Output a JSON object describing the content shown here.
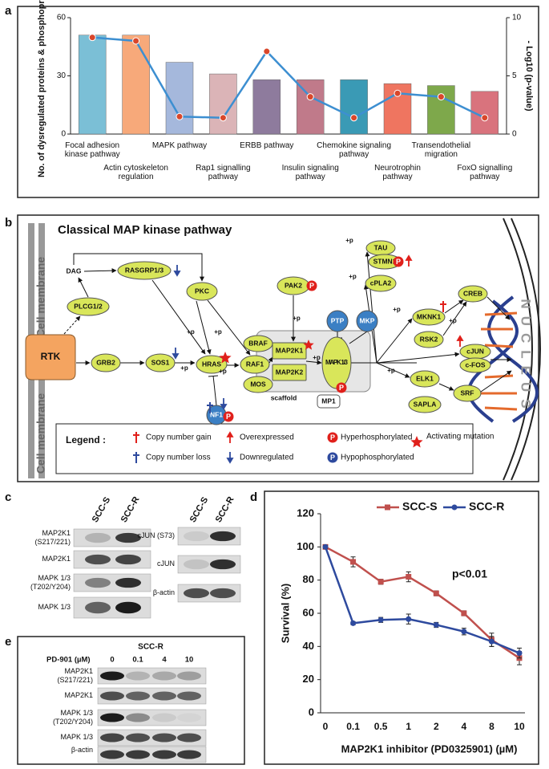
{
  "panel_labels": [
    "a",
    "b",
    "c",
    "d",
    "e"
  ],
  "chart_data": [
    {
      "type": "bar",
      "categories": [
        "Focal adhesion kinase pathway",
        "Actin cytoskeleton regulation",
        "MAPK pathway",
        "Rap1 signalling pathway",
        "ERBB pathway",
        "Insulin signaling pathway",
        "Chemokine signaling pathway",
        "Neurotrophin pathway",
        "Transendothelial migration",
        "FoxO signalling pathway"
      ],
      "values": [
        51,
        51,
        37,
        31,
        28,
        28,
        28,
        26,
        25,
        22
      ],
      "colors": [
        "#7bbfd6",
        "#f7a97a",
        "#a5b8dc",
        "#dbb4b7",
        "#8e7b9d",
        "#c07a8a",
        "#3a9ab5",
        "#ef7560",
        "#7ea84b",
        "#d9737d"
      ],
      "series": [
        {
          "type": "line",
          "axis": "y2",
          "color": "#3d8fd1",
          "marker_color": "#d9472b",
          "values": [
            8.3,
            8.0,
            1.5,
            1.4,
            7.1,
            3.2,
            1.4,
            3.5,
            3.2,
            1.4
          ]
        }
      ],
      "y_label": "No. of dysregulated proteins & phosphoproteins",
      "y2_label": "- Log10 (p-value)",
      "ylim": [
        0,
        60
      ],
      "yticks": [
        0,
        30,
        60
      ],
      "y2lim": [
        0,
        10
      ],
      "y2ticks": [
        0,
        5,
        10
      ]
    },
    {
      "type": "line",
      "categories": [
        "0",
        "0.1",
        "0.5",
        "1",
        "2",
        "4",
        "8",
        "10"
      ],
      "series": [
        {
          "name": "SCC-S",
          "color": "#c0504d",
          "marker": "square",
          "values": [
            100,
            91,
            79,
            82,
            72,
            60,
            44,
            33
          ],
          "errors": [
            1,
            3,
            1.5,
            3,
            1.5,
            1.5,
            4,
            4
          ]
        },
        {
          "name": "SCC-R",
          "color": "#2e4a9e",
          "marker": "circle",
          "values": [
            100,
            54,
            56,
            56.5,
            53,
            49,
            43,
            36
          ],
          "errors": [
            1,
            1,
            1.5,
            3,
            1.5,
            2,
            3,
            3
          ]
        }
      ],
      "x_label": "MAP2K1 inhibitor (PD0325901) (µM)",
      "y_label": "Survival (%)",
      "annotation": "p<0.01",
      "ylim": [
        0,
        120
      ],
      "yticks": [
        0,
        20,
        40,
        60,
        80,
        100,
        120
      ]
    }
  ],
  "pathway": {
    "title": "Classical MAP kinase pathway",
    "membrane": "Cell membrane",
    "nucleus": "NUCLEUS",
    "plus_p": "+p",
    "p_badge": "P",
    "nodes": [
      "RTK",
      "GRB2",
      "SOS1",
      "HRAS",
      "RAF1",
      "BRAF",
      "MOS",
      "PLCG1/2",
      "DAG",
      "RASGRP1/3",
      "PKC",
      "PAK2",
      "PTP",
      "MKP",
      "MAP2K1",
      "MAP2K2",
      "MAPK 1/3",
      "scaffold",
      "MP1",
      "NF1",
      "TAU",
      "STMN1",
      "cPLA2",
      "MKNK1",
      "RSK2",
      "CREB",
      "cJUN",
      "c-FOS",
      "ELK1",
      "SAPLA",
      "SRF"
    ],
    "legend": {
      "title": "Legend :",
      "items": [
        "Copy number gain",
        "Copy number loss",
        "Overexpressed",
        "Downregulated",
        "Hyperhosphorylated",
        "Hypophosphorylated",
        "Activating mutation"
      ]
    }
  },
  "blots_c": {
    "lanes": [
      "SCC-S",
      "SCC-R"
    ],
    "left_rows": [
      "MAP2K1 (S217/221)",
      "MAP2K1",
      "MAPK 1/3 (T202/Y204)",
      "MAPK 1/3"
    ],
    "right_rows": [
      "cJUN (S73)",
      "cJUN",
      "β-actin"
    ]
  },
  "blots_e": {
    "group": "SCC-R",
    "dose_label": "PD-901 (µM)",
    "doses": [
      "0",
      "0.1",
      "4",
      "10"
    ],
    "rows": [
      "MAP2K1 (S217/221)",
      "MAP2K1",
      "MAPK 1/3 (T202/Y204)",
      "MAPK 1/3",
      "β-actin"
    ]
  }
}
